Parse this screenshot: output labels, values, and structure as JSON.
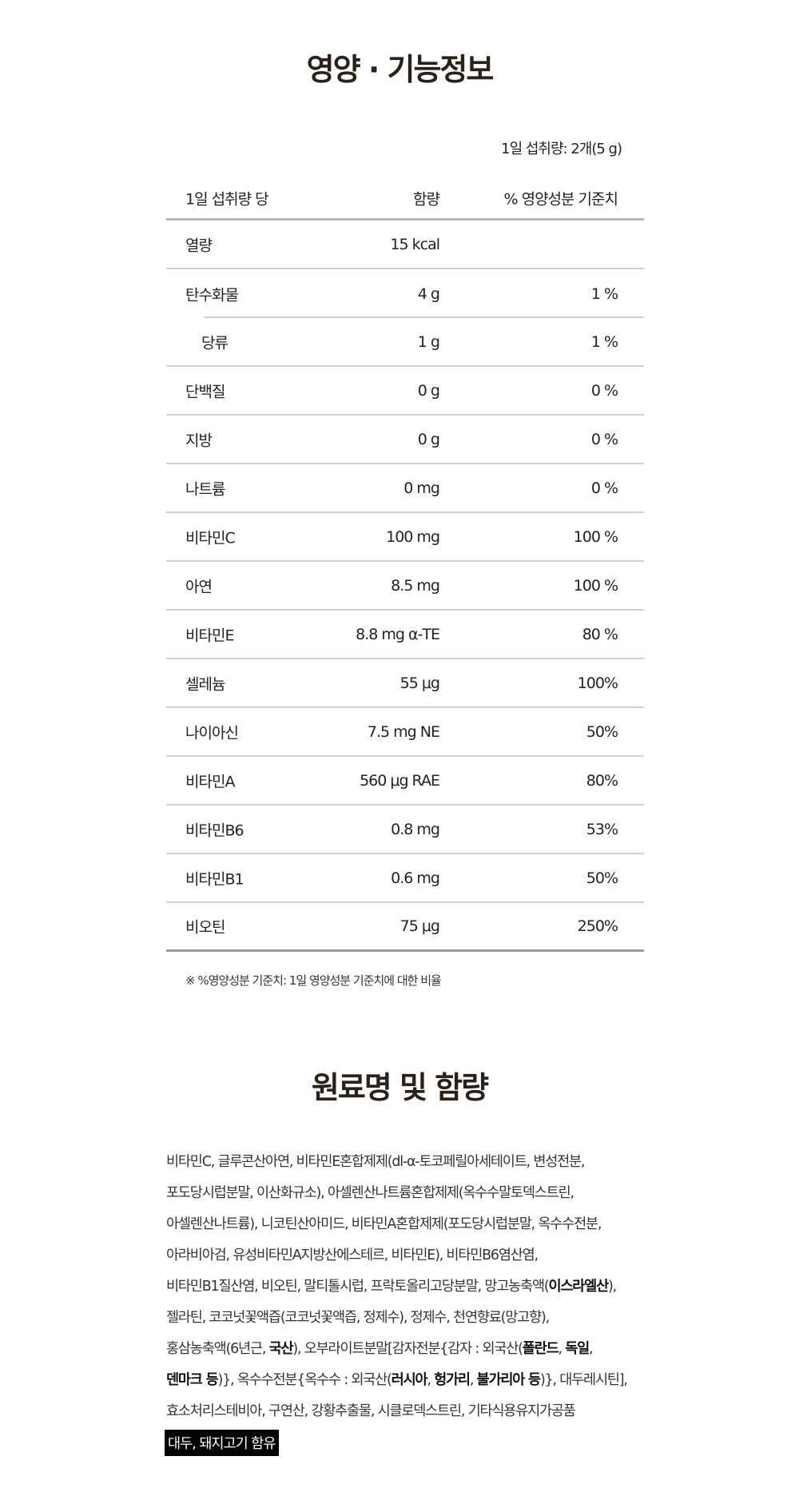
{
  "nutrition": {
    "title": "영양 · 기능정보",
    "serving": "1일 섭취량: 2개(5 g)",
    "headers": [
      "1일 섭취량 당",
      "함량",
      "% 영양성분 기준치"
    ],
    "rows": [
      {
        "name": "열량",
        "amount": "15 kcal",
        "pct": ""
      },
      {
        "name": "탄수화물",
        "amount": "4 g",
        "pct": "1 %"
      },
      {
        "name": "당류",
        "amount": "1 g",
        "pct": "1 %"
      },
      {
        "name": "단백질",
        "amount": "0 g",
        "pct": "0 %"
      },
      {
        "name": "지방",
        "amount": "0 g",
        "pct": "0 %"
      },
      {
        "name": "나트륨",
        "amount": "0 mg",
        "pct": "0 %"
      },
      {
        "name": "비타민C",
        "amount": "100 mg",
        "pct": "100 %"
      },
      {
        "name": "아연",
        "amount": "8.5 mg",
        "pct": "100 %"
      },
      {
        "name": "비타민E",
        "amount": "8.8 mg α-TE",
        "pct": "80 %"
      },
      {
        "name": "셀레늄",
        "amount": "55 μg",
        "pct": "100%"
      },
      {
        "name": "나이아신",
        "amount": "7.5 mg NE",
        "pct": "50%"
      },
      {
        "name": "비타민A",
        "amount": "560 μg RAE",
        "pct": "80%"
      },
      {
        "name": "비타민B6",
        "amount": "0.8 mg",
        "pct": "53%"
      },
      {
        "name": "비타민B1",
        "amount": "0.6 mg",
        "pct": "50%"
      },
      {
        "name": "비오틴",
        "amount": "75 μg",
        "pct": "250%"
      }
    ],
    "note": "※ %영양성분 기준치: 1일 영양성분 기준치에 대한 비율"
  },
  "ingredients": {
    "title": "원료명 및 함량",
    "lines": [
      [
        {
          "t": "비타민C, 글루콘산아연, 비타민E혼합제제(dl-α-토코페릴아세테이트, 변성전분,"
        }
      ],
      [
        {
          "t": "포도당시럽분말, 이산화규소), 아셀렌산나트륨혼합제제(옥수수말토덱스트린,"
        }
      ],
      [
        {
          "t": "아셀렌산나트륨), 니코틴산아미드, 비타민A혼합제제(포도당시럽분말, 옥수수전분,"
        }
      ],
      [
        {
          "t": "아라비아검, 유성비타민A지방산에스테르, 비타민E), 비타민B6염산염,"
        }
      ],
      [
        {
          "t": "비타민B1질산염, 비오틴, 말티톨시럽, 프락토올리고당분말, 망고농축액("
        },
        {
          "t": "이스라엘산",
          "b": true
        },
        {
          "t": "),"
        }
      ],
      [
        {
          "t": "젤라틴, 코코넛꽃액즙(코코넛꽃액즙, 정제수), 정제수, 천연향료(망고향),"
        }
      ],
      [
        {
          "t": "홍삼농축액(6년근, "
        },
        {
          "t": "국산",
          "b": true
        },
        {
          "t": "), 오부라이트분말[감자전분{감자 : 외국산("
        },
        {
          "t": "폴란드",
          "b": true
        },
        {
          "t": ", "
        },
        {
          "t": "독일",
          "b": true
        },
        {
          "t": ","
        }
      ],
      [
        {
          "t": "덴마크 등",
          "b": true
        },
        {
          "t": ")}, 옥수수전분{옥수수 : 외국산("
        },
        {
          "t": "러시아",
          "b": true
        },
        {
          "t": ", "
        },
        {
          "t": "헝가리",
          "b": true
        },
        {
          "t": ", "
        },
        {
          "t": "불가리아 등",
          "b": true
        },
        {
          "t": ")}, 대두레시틴],"
        }
      ],
      [
        {
          "t": "효소처리스테비아, 구연산, 강황추출물, 시클로덱스트린, 기타식용유지가공품"
        }
      ]
    ],
    "allergy": "대두, 돼지고기 함유"
  }
}
